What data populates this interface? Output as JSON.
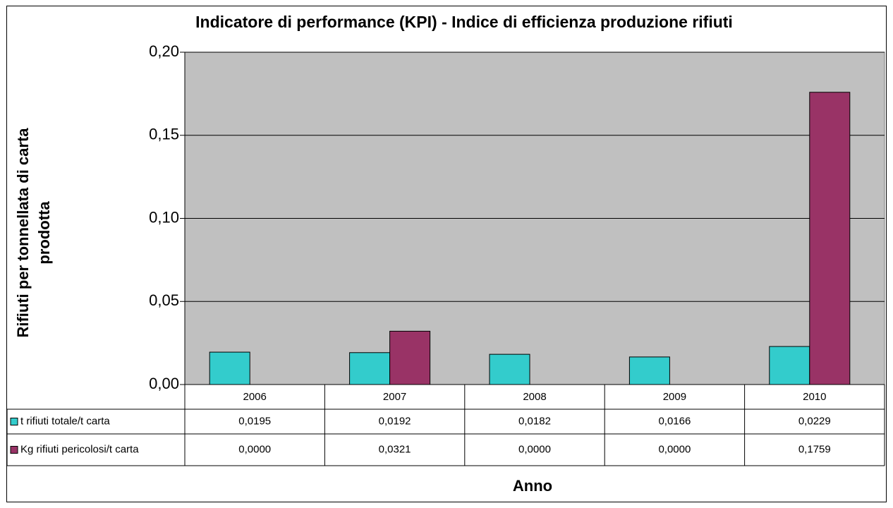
{
  "chart_data": {
    "type": "bar",
    "title": "Indicatore di performance (KPI) - Indice di efficienza produzione rifiuti",
    "y_label": "Rifiuti per tonnellata di carta prodotta",
    "x_label": "Anno",
    "categories": [
      "2006",
      "2007",
      "2008",
      "2009",
      "2010"
    ],
    "series": [
      {
        "name": "t rifiuti totale/t carta",
        "color": "#33cccc",
        "values": [
          0.0195,
          0.0192,
          0.0182,
          0.0166,
          0.0229
        ],
        "value_labels": [
          "0,0195",
          "0,0192",
          "0,0182",
          "0,0166",
          "0,0229"
        ]
      },
      {
        "name": "Kg rifiuti pericolosi/t carta",
        "color": "#993366",
        "values": [
          0.0,
          0.0321,
          0.0,
          0.0,
          0.1759
        ],
        "value_labels": [
          "0,0000",
          "0,0321",
          "0,0000",
          "0,0000",
          "0,1759"
        ]
      }
    ],
    "ylim": [
      0,
      0.2
    ],
    "yticks": [
      {
        "value": 0,
        "label": "0,00"
      },
      {
        "value": 0.05,
        "label": "0,05"
      },
      {
        "value": 0.1,
        "label": "0,10"
      },
      {
        "value": 0.15,
        "label": "0,15"
      },
      {
        "value": 0.2,
        "label": "0,20"
      }
    ],
    "grid": true,
    "plot_background": "#c0c0c0"
  }
}
